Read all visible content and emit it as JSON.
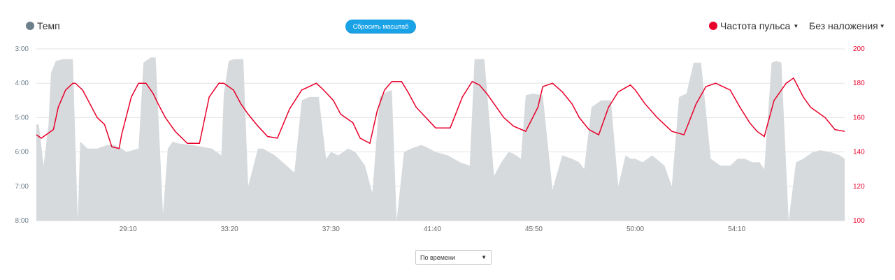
{
  "legend": {
    "pace_label": "Темп",
    "pace_color": "#6e7f8c",
    "hr_label": "Частота пульса",
    "hr_color": "#e8002a",
    "overlay_label": "Без наложения"
  },
  "reset_button_label": "Сбросить масштаб",
  "mode_select": {
    "value": "По времени"
  },
  "icons": {
    "dropdown": "caret-down-icon"
  },
  "chart_data": {
    "type": "line",
    "series": [
      {
        "name": "Темп",
        "kind": "area",
        "color": "#d6dadd",
        "unit": "min/km",
        "x": [
          25.4,
          25.5,
          25.7,
          25.9,
          26.0,
          26.2,
          26.5,
          26.7,
          26.9,
          27.1,
          27.2,
          27.5,
          27.9,
          28.3,
          28.6,
          28.9,
          29.1,
          29.6,
          29.8,
          30.1,
          30.3,
          30.6,
          30.8,
          31.0,
          31.2,
          31.8,
          32.6,
          33.0,
          33.1,
          33.3,
          33.5,
          33.9,
          34.1,
          34.5,
          34.7,
          35.2,
          36.0,
          36.3,
          36.6,
          37.0,
          37.3,
          37.5,
          37.8,
          38.2,
          38.5,
          38.9,
          39.2,
          39.5,
          39.8,
          40.0,
          40.2,
          40.5,
          40.8,
          41.2,
          41.4,
          41.8,
          42.3,
          42.8,
          43.2,
          43.4,
          43.6,
          43.8,
          44.2,
          44.5,
          44.8,
          45.0,
          45.3,
          45.5,
          45.8,
          46.2,
          46.6,
          47.0,
          47.4,
          47.7,
          47.9,
          48.2,
          48.6,
          49.0,
          49.3,
          49.6,
          49.8,
          50.0,
          50.3,
          50.7,
          51.2,
          51.5,
          51.8,
          52.1,
          52.4,
          52.7,
          53.1,
          53.5,
          53.9,
          54.2,
          54.5,
          54.8,
          55.1,
          55.3,
          55.6,
          55.8,
          56.0,
          56.3,
          56.6,
          56.9,
          57.3,
          57.6,
          58.0,
          58.4,
          58.6
        ],
        "y": [
          5.2,
          5.2,
          6.4,
          5.2,
          3.7,
          3.35,
          3.3,
          3.3,
          3.3,
          8.0,
          5.7,
          5.9,
          5.9,
          5.8,
          5.8,
          5.9,
          6.0,
          5.9,
          3.4,
          3.25,
          3.25,
          7.8,
          5.9,
          5.7,
          5.75,
          5.8,
          5.9,
          6.1,
          4.3,
          3.35,
          3.3,
          3.3,
          7.0,
          5.9,
          5.9,
          6.1,
          6.6,
          4.5,
          4.4,
          4.4,
          6.2,
          6.0,
          6.1,
          5.9,
          6.0,
          6.4,
          7.2,
          4.4,
          4.25,
          4.2,
          8.0,
          6.0,
          5.9,
          5.8,
          5.85,
          6.0,
          6.1,
          6.3,
          6.4,
          3.3,
          3.3,
          3.3,
          6.7,
          6.3,
          6.0,
          6.05,
          6.2,
          4.35,
          4.3,
          4.35,
          7.1,
          6.1,
          6.2,
          6.3,
          6.5,
          4.7,
          4.5,
          4.5,
          7.0,
          6.1,
          6.2,
          6.2,
          6.3,
          6.1,
          6.4,
          7.0,
          4.4,
          4.3,
          3.4,
          3.4,
          6.2,
          6.4,
          6.4,
          6.2,
          6.2,
          6.3,
          6.3,
          6.5,
          3.4,
          3.35,
          3.4,
          8.0,
          6.3,
          6.2,
          6.0,
          5.95,
          6.0,
          6.1,
          6.2
        ]
      },
      {
        "name": "Частота пульса",
        "kind": "line",
        "color": "#e8002a",
        "unit": "bpm",
        "x": [
          25.4,
          25.6,
          25.9,
          26.1,
          26.3,
          26.6,
          26.9,
          27.0,
          27.3,
          27.6,
          27.9,
          28.2,
          28.5,
          28.8,
          28.9,
          29.3,
          29.6,
          29.9,
          30.2,
          30.4,
          30.7,
          31.1,
          31.6,
          32.1,
          32.5,
          32.9,
          33.1,
          33.5,
          33.8,
          34.1,
          34.5,
          34.9,
          35.3,
          35.8,
          36.3,
          36.9,
          37.2,
          37.6,
          37.9,
          38.4,
          38.7,
          39.1,
          39.4,
          39.7,
          40.0,
          40.4,
          40.7,
          41.0,
          41.4,
          41.8,
          42.4,
          42.9,
          43.3,
          43.6,
          43.9,
          44.2,
          44.6,
          45.0,
          45.5,
          46.0,
          46.2,
          46.6,
          47.0,
          47.4,
          47.7,
          48.1,
          48.5,
          48.9,
          49.3,
          49.8,
          50.0,
          50.4,
          50.9,
          51.5,
          52.0,
          52.5,
          52.9,
          53.3,
          53.9,
          54.3,
          54.7,
          55.0,
          55.3,
          55.7,
          56.0,
          56.2,
          56.5,
          56.9,
          57.2,
          57.8,
          58.2,
          58.6
        ],
        "y": [
          150,
          148,
          151,
          153,
          166,
          176,
          180,
          180,
          176,
          168,
          160,
          156,
          143,
          142,
          150,
          172,
          180,
          180,
          174,
          168,
          160,
          152,
          145,
          145,
          172,
          180,
          180,
          176,
          168,
          162,
          155,
          149,
          148,
          165,
          176,
          180,
          176,
          170,
          162,
          157,
          148,
          145,
          164,
          176,
          181,
          181,
          174,
          166,
          160,
          154,
          154,
          172,
          181,
          179,
          174,
          168,
          160,
          155,
          152,
          166,
          178,
          180,
          175,
          168,
          160,
          153,
          150,
          166,
          175,
          179,
          176,
          168,
          160,
          152,
          150,
          168,
          178,
          180,
          176,
          166,
          157,
          152,
          149,
          170,
          176,
          180,
          183,
          172,
          166,
          160,
          153,
          152
        ]
      }
    ],
    "x_ticks": [
      "29:10",
      "33:20",
      "37:30",
      "41:40",
      "45:50",
      "50:00",
      "54:10"
    ],
    "x_tick_values": [
      29.1667,
      33.3333,
      37.5,
      41.6667,
      45.8333,
      50.0,
      54.1667
    ],
    "xlim": [
      25.4,
      58.6
    ],
    "y_left": {
      "ticks": [
        "3:00",
        "4:00",
        "5:00",
        "6:00",
        "7:00",
        "8:00"
      ],
      "values": [
        3,
        4,
        5,
        6,
        7,
        8
      ],
      "reversed": true,
      "range": [
        3,
        8
      ]
    },
    "y_right": {
      "ticks": [
        "200",
        "180",
        "160",
        "140",
        "120",
        "100"
      ],
      "values": [
        200,
        180,
        160,
        140,
        120,
        100
      ],
      "range": [
        100,
        200
      ]
    },
    "grid": true
  }
}
